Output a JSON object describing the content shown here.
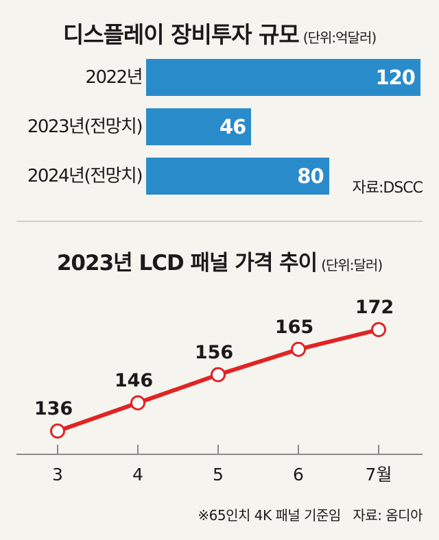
{
  "chart_data": [
    {
      "type": "bar",
      "orientation": "horizontal",
      "title": "디스플레이 장비투자 규모",
      "unit": "(단위:억달러)",
      "categories": [
        "2022년",
        "2023년(전망치)",
        "2024년(전망치)"
      ],
      "values": [
        120,
        46,
        80
      ],
      "color": "#2a8bca",
      "source": "자료:DSCC"
    },
    {
      "type": "line",
      "title": "2023년 LCD 패널 가격 추이",
      "unit": "(단위:달러)",
      "categories": [
        "3",
        "4",
        "5",
        "6",
        "7월"
      ],
      "values": [
        136,
        146,
        156,
        165,
        172
      ],
      "data_labels": [
        "136",
        "146",
        "156",
        "165",
        "172"
      ],
      "color": "#e02424",
      "note": "※65인치 4K 패널 기준임",
      "source": "자료: 옴디아"
    }
  ]
}
